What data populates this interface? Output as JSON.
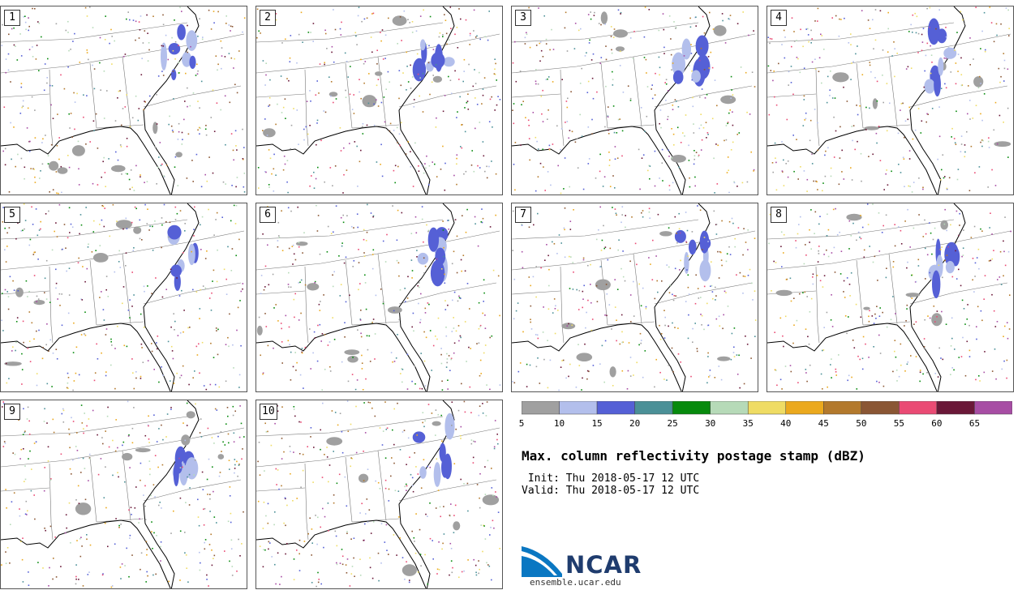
{
  "panels": [
    {
      "label": "1"
    },
    {
      "label": "2"
    },
    {
      "label": "3"
    },
    {
      "label": "4"
    },
    {
      "label": "5"
    },
    {
      "label": "6"
    },
    {
      "label": "7"
    },
    {
      "label": "8"
    },
    {
      "label": "9"
    },
    {
      "label": "10"
    }
  ],
  "colorbar": {
    "ticks": [
      "5",
      "10",
      "15",
      "20",
      "25",
      "30",
      "35",
      "40",
      "45",
      "50",
      "55",
      "60",
      "65"
    ],
    "colors": [
      "#a0a0a0",
      "#b3bfec",
      "#5560d6",
      "#4b9097",
      "#078a0d",
      "#b6dab8",
      "#efdc64",
      "#eba91e",
      "#b3792c",
      "#8a5634",
      "#ea4b74",
      "#6a1838",
      "#a74da4"
    ]
  },
  "title": "Max. column reflectivity postage stamp (dBZ)",
  "init": " Init: Thu 2018-05-17 12 UTC",
  "valid": "Valid: Thu 2018-05-17 12 UTC",
  "logo": {
    "org": "NCAR",
    "site": "ensemble.ucar.edu"
  }
}
